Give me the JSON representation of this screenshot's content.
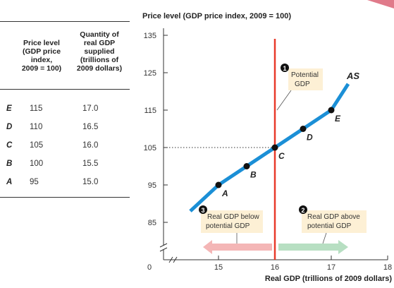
{
  "table": {
    "col1_header": [
      "Price level",
      "(GDP price",
      "index,",
      "2009 = 100)"
    ],
    "col2_header": [
      "Quantity of",
      "real GDP",
      "supplied",
      "(trillions of",
      "2009 dollars)"
    ],
    "rows": [
      {
        "label": "E",
        "price": "115",
        "quantity": "17.0"
      },
      {
        "label": "D",
        "price": "110",
        "quantity": "16.5"
      },
      {
        "label": "C",
        "price": "105",
        "quantity": "16.0"
      },
      {
        "label": "B",
        "price": "100",
        "quantity": "15.5"
      },
      {
        "label": "A",
        "price": "95",
        "quantity": "15.0"
      }
    ]
  },
  "chart_data": {
    "type": "line",
    "ylabel": "Price level (GDP price index, 2009 = 100)",
    "xlabel": "Real GDP (trillions of 2009 dollars)",
    "y_ticks": [
      85,
      95,
      105,
      115,
      125,
      135
    ],
    "x_ticks": [
      15,
      16,
      17,
      18
    ],
    "origin_label": "0",
    "xlim": [
      14.5,
      18
    ],
    "ylim": [
      85,
      135
    ],
    "series": [
      {
        "name": "AS",
        "color": "#1b8fd6",
        "x": [
          14.5,
          15.0,
          15.5,
          16.0,
          16.5,
          17.0,
          17.3
        ],
        "y": [
          88,
          95,
          100,
          105,
          110,
          115,
          122
        ]
      }
    ],
    "points": [
      {
        "label": "A",
        "x": 15.0,
        "y": 95
      },
      {
        "label": "B",
        "x": 15.5,
        "y": 100
      },
      {
        "label": "C",
        "x": 16.0,
        "y": 105
      },
      {
        "label": "D",
        "x": 16.5,
        "y": 110
      },
      {
        "label": "E",
        "x": 17.0,
        "y": 115
      }
    ],
    "potential_gdp": {
      "x": 16.0,
      "color": "#e83a2a"
    },
    "callouts": [
      {
        "number": "1",
        "lines": [
          "Potential",
          "GDP"
        ]
      },
      {
        "number": "3",
        "lines": [
          "Real GDP below",
          "potential GDP"
        ]
      },
      {
        "number": "2",
        "lines": [
          "Real GDP above",
          "potential GDP"
        ]
      }
    ],
    "colors": {
      "arrow_left": "#f4b6b6",
      "arrow_right": "#b7dfc2",
      "callout_bg": "#fdf0d5"
    }
  }
}
